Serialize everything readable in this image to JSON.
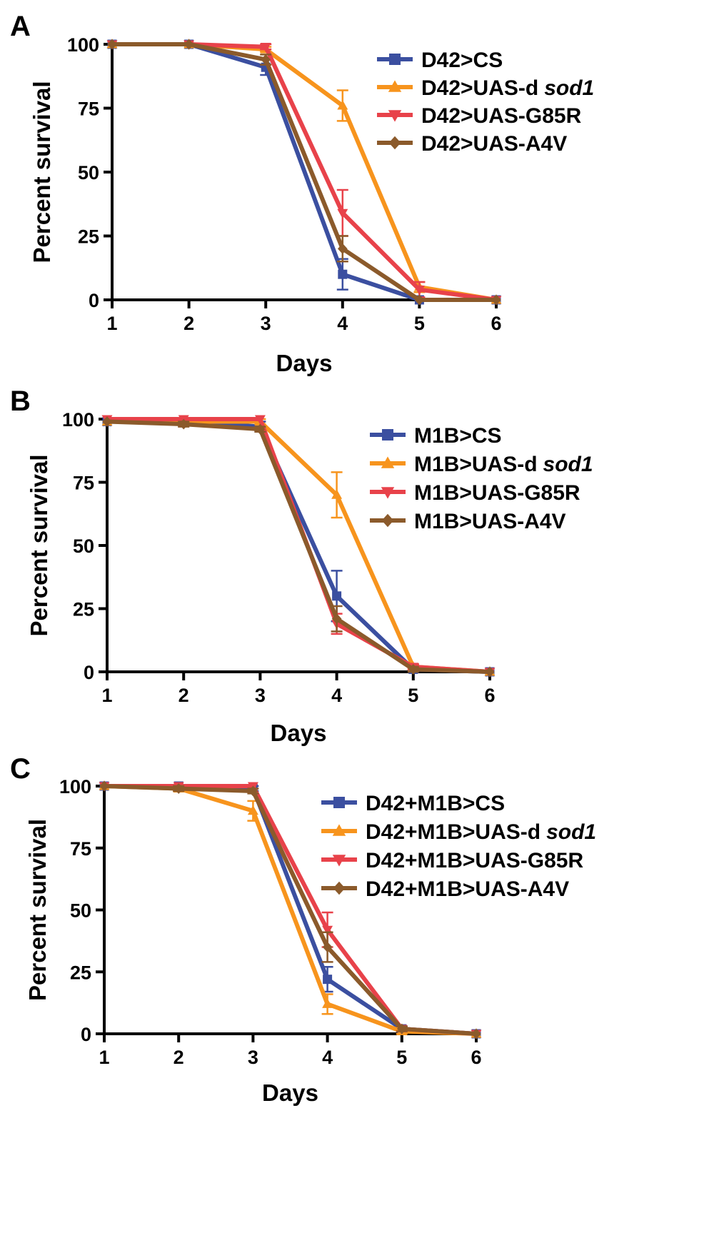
{
  "chart_data": [
    {
      "type": "line",
      "panel": "A",
      "xlabel": "Days",
      "ylabel": "Percent survival",
      "x": [
        1,
        2,
        3,
        4,
        5,
        6
      ],
      "xlim": [
        1,
        6
      ],
      "ylim": [
        0,
        100
      ],
      "xticks": [
        "1",
        "2",
        "3",
        "4",
        "5",
        "6"
      ],
      "yticks": [
        "0",
        "25",
        "50",
        "75",
        "100"
      ],
      "legend_position": "top-right",
      "series": [
        {
          "name": "D42>CS",
          "name_main": "D42>CS",
          "name_italic": "",
          "color": "#3b4fa0",
          "marker": "square",
          "values": [
            100,
            100,
            91,
            10,
            0,
            0
          ],
          "errors": [
            0,
            0,
            3,
            6,
            0,
            0
          ]
        },
        {
          "name": "D42>UAS-d sod1",
          "name_main": "D42>UAS-d",
          "name_italic": "sod1",
          "color": "#f7941d",
          "marker": "triangle-up",
          "values": [
            100,
            100,
            98,
            76,
            5,
            0
          ],
          "errors": [
            0,
            0,
            1,
            6,
            2,
            0
          ]
        },
        {
          "name": "D42>UAS-G85R",
          "name_main": "D42>UAS-G85R",
          "name_italic": "",
          "color": "#e8424a",
          "marker": "triangle-down",
          "values": [
            100,
            100,
            99,
            34,
            4,
            0
          ],
          "errors": [
            0,
            0,
            1,
            9,
            3,
            0
          ]
        },
        {
          "name": "D42>UAS-A4V",
          "name_main": "D42>UAS-A4V",
          "name_italic": "",
          "color": "#8b5a2b",
          "marker": "diamond",
          "values": [
            100,
            100,
            94,
            20,
            0,
            0
          ],
          "errors": [
            0,
            0,
            2,
            5,
            0,
            0
          ]
        }
      ]
    },
    {
      "type": "line",
      "panel": "B",
      "xlabel": "Days",
      "ylabel": "Percent survival",
      "x": [
        1,
        2,
        3,
        4,
        5,
        6
      ],
      "xlim": [
        1,
        6
      ],
      "ylim": [
        0,
        100
      ],
      "xticks": [
        "1",
        "2",
        "3",
        "4",
        "5",
        "6"
      ],
      "yticks": [
        "0",
        "25",
        "50",
        "75",
        "100"
      ],
      "legend_position": "top-right",
      "series": [
        {
          "name": "M1B>CS",
          "name_main": "M1B>CS",
          "name_italic": "",
          "color": "#3b4fa0",
          "marker": "square",
          "values": [
            99,
            99,
            97,
            30,
            1,
            0
          ],
          "errors": [
            0,
            1,
            2,
            10,
            1,
            0
          ]
        },
        {
          "name": "M1B>UAS-d sod1",
          "name_main": "M1B>UAS-d",
          "name_italic": "sod1",
          "color": "#f7941d",
          "marker": "triangle-up",
          "values": [
            99,
            99,
            99,
            70,
            2,
            0
          ],
          "errors": [
            0,
            1,
            1,
            9,
            1,
            0
          ]
        },
        {
          "name": "M1B>UAS-G85R",
          "name_main": "M1B>UAS-G85R",
          "name_italic": "",
          "color": "#e8424a",
          "marker": "triangle-down",
          "values": [
            100,
            100,
            100,
            19,
            2,
            0
          ],
          "errors": [
            0,
            0,
            0,
            4,
            1,
            0
          ]
        },
        {
          "name": "M1B>UAS-A4V",
          "name_main": "M1B>UAS-A4V",
          "name_italic": "",
          "color": "#8b5a2b",
          "marker": "diamond",
          "values": [
            99,
            98,
            96,
            21,
            1,
            0
          ],
          "errors": [
            0,
            1,
            1,
            5,
            1,
            0
          ]
        }
      ]
    },
    {
      "type": "line",
      "panel": "C",
      "xlabel": "Days",
      "ylabel": "Percent survival",
      "x": [
        1,
        2,
        3,
        4,
        5,
        6
      ],
      "xlim": [
        1,
        6
      ],
      "ylim": [
        0,
        100
      ],
      "xticks": [
        "1",
        "2",
        "3",
        "4",
        "5",
        "6"
      ],
      "yticks": [
        "0",
        "25",
        "50",
        "75",
        "100"
      ],
      "legend_position": "top-right",
      "series": [
        {
          "name": "D42+M1B>CS",
          "name_main": "D42+M1B>CS",
          "name_italic": "",
          "color": "#3b4fa0",
          "marker": "square",
          "values": [
            100,
            100,
            99,
            22,
            2,
            0
          ],
          "errors": [
            0,
            0,
            1,
            5,
            1,
            0
          ]
        },
        {
          "name": "D42+M1B>UAS-d sod1",
          "name_main": "D42+M1B>UAS-d",
          "name_italic": "sod1",
          "color": "#f7941d",
          "marker": "triangle-up",
          "values": [
            100,
            99,
            90,
            12,
            1,
            0
          ],
          "errors": [
            0,
            1,
            4,
            4,
            1,
            0
          ]
        },
        {
          "name": "D42+M1B>UAS-G85R",
          "name_main": "D42+M1B>UAS-G85R",
          "name_italic": "",
          "color": "#e8424a",
          "marker": "triangle-down",
          "values": [
            100,
            100,
            100,
            42,
            2,
            0
          ],
          "errors": [
            0,
            0,
            0,
            7,
            1,
            0
          ]
        },
        {
          "name": "D42+M1B>UAS-A4V",
          "name_main": "D42+M1B>UAS-A4V",
          "name_italic": "",
          "color": "#8b5a2b",
          "marker": "diamond",
          "values": [
            100,
            99,
            98,
            35,
            2,
            0
          ],
          "errors": [
            0,
            1,
            1,
            6,
            1,
            0
          ]
        }
      ]
    }
  ]
}
